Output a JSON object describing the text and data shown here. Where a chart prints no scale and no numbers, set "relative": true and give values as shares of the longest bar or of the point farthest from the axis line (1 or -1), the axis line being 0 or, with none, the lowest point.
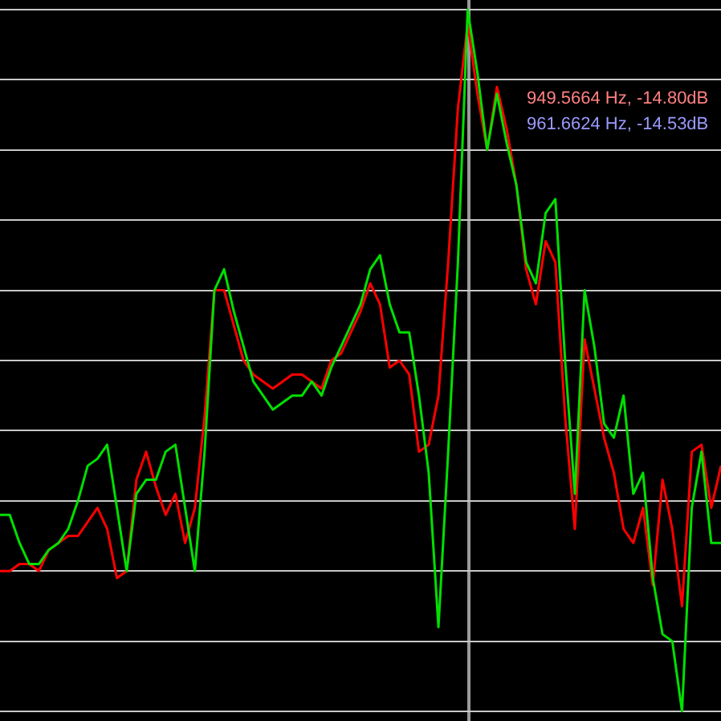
{
  "chart_data": {
    "type": "line",
    "relative": true,
    "grid": "y",
    "legend": false,
    "marker": "none",
    "line_style": "solid",
    "categories": [
      null,
      null,
      null,
      null,
      null,
      null,
      null,
      null,
      null,
      null,
      null,
      null,
      null,
      null,
      null,
      null,
      null,
      null,
      null,
      null,
      null,
      null,
      null,
      null,
      null,
      null,
      null,
      null,
      null,
      null,
      null,
      null,
      null,
      null,
      null,
      null,
      null,
      null,
      null,
      null,
      null,
      null,
      null,
      null,
      null,
      null,
      null,
      null,
      null,
      null,
      null,
      null,
      null,
      null,
      null,
      null,
      null,
      null,
      null,
      null,
      null,
      null,
      null,
      null,
      null,
      null,
      null,
      null,
      null,
      null,
      null,
      null,
      null,
      null,
      null
    ],
    "series": [
      {
        "color": "#ff0000",
        "values": [
          0.2,
          0.2,
          0.21,
          0.21,
          0.2,
          0.23,
          0.24,
          0.25,
          0.25,
          0.27,
          0.29,
          0.26,
          0.19,
          0.2,
          0.33,
          0.37,
          0.32,
          0.28,
          0.31,
          0.24,
          0.29,
          0.42,
          0.6,
          0.6,
          0.55,
          0.5,
          0.48,
          0.47,
          0.46,
          0.47,
          0.48,
          0.48,
          0.47,
          0.46,
          0.5,
          0.51,
          0.54,
          0.57,
          0.61,
          0.58,
          0.49,
          0.5,
          0.48,
          0.37,
          0.38,
          0.45,
          0.64,
          0.86,
          0.98,
          0.88,
          0.8,
          0.89,
          0.83,
          0.75,
          0.63,
          0.58,
          0.67,
          0.64,
          0.42,
          0.26,
          0.53,
          0.46,
          0.39,
          0.34,
          0.26,
          0.24,
          0.29,
          0.18,
          0.33,
          0.26,
          0.15,
          0.37,
          0.38,
          0.29,
          0.35
        ]
      },
      {
        "color": "#00e000",
        "values": [
          0.28,
          0.28,
          0.24,
          0.21,
          0.21,
          0.23,
          0.24,
          0.26,
          0.3,
          0.35,
          0.36,
          0.38,
          0.29,
          0.2,
          0.31,
          0.33,
          0.33,
          0.37,
          0.38,
          0.29,
          0.2,
          0.37,
          0.6,
          0.63,
          0.57,
          0.52,
          0.47,
          0.45,
          0.43,
          0.44,
          0.45,
          0.45,
          0.47,
          0.45,
          0.49,
          0.52,
          0.55,
          0.58,
          0.63,
          0.65,
          0.58,
          0.54,
          0.54,
          0.45,
          0.34,
          0.12,
          0.37,
          0.64,
          1,
          0.91,
          0.8,
          0.88,
          0.81,
          0.75,
          0.64,
          0.61,
          0.71,
          0.73,
          0.5,
          0.31,
          0.6,
          0.52,
          0.41,
          0.39,
          0.45,
          0.31,
          0.34,
          0.19,
          0.11,
          0.1,
          0,
          0.29,
          0.37,
          0.24,
          0.24
        ]
      }
    ],
    "annotations": [
      "949.5664 Hz, -14.80dB",
      "961.6624 Hz, -14.53dB"
    ]
  }
}
